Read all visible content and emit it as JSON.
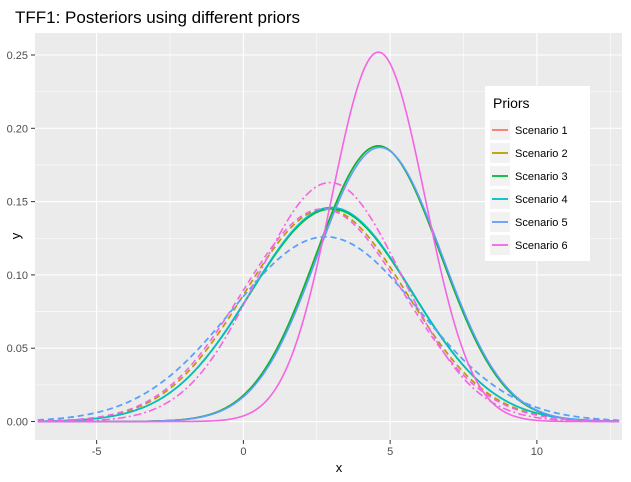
{
  "chart_data": {
    "type": "line",
    "title": "TFF1: Posteriors using different priors",
    "xlabel": "x",
    "ylabel": "y",
    "xlim": [
      -7.1,
      12.9
    ],
    "ylim": [
      -0.0126,
      0.265
    ],
    "x_ticks": [
      -5,
      0,
      5,
      10
    ],
    "y_ticks": [
      0.0,
      0.05,
      0.1,
      0.15,
      0.2,
      0.25
    ],
    "x_tick_labels": [
      "-5",
      "0",
      "5",
      "10"
    ],
    "y_tick_labels": [
      "0.00",
      "0.05",
      "0.10",
      "0.15",
      "0.20",
      "0.25"
    ],
    "grid": true,
    "legend": {
      "title": "Priors",
      "position": "right",
      "entries": [
        "Scenario 1",
        "Scenario 2",
        "Scenario 3",
        "Scenario 4",
        "Scenario 5",
        "Scenario 6"
      ]
    },
    "x_range": [
      -7,
      12.8
    ],
    "series": [
      {
        "name": "Scenario 1",
        "color": "#F8766D",
        "curves": [
          {
            "style": "dashed",
            "mean": 2.8,
            "sd": 2.75,
            "peak": 0.145
          },
          {
            "style": "solid",
            "mean": 4.6,
            "sd": 2.12,
            "peak": 0.188
          }
        ]
      },
      {
        "name": "Scenario 2",
        "color": "#B79F00",
        "curves": [
          {
            "style": "dashed",
            "mean": 2.8,
            "sd": 2.75,
            "peak": 0.145
          },
          {
            "style": "solid",
            "mean": 4.6,
            "sd": 2.12,
            "peak": 0.188
          }
        ]
      },
      {
        "name": "Scenario 3",
        "color": "#00BA38",
        "curves": [
          {
            "style": "solid",
            "mean": 3.0,
            "sd": 2.75,
            "peak": 0.145
          },
          {
            "style": "solid",
            "mean": 4.6,
            "sd": 2.12,
            "peak": 0.188
          }
        ]
      },
      {
        "name": "Scenario 4",
        "color": "#00BFC4",
        "curves": [
          {
            "style": "solid",
            "mean": 3.0,
            "sd": 2.75,
            "peak": 0.146
          },
          {
            "style": "dashed",
            "mean": 2.8,
            "sd": 3.17,
            "peak": 0.126
          }
        ]
      },
      {
        "name": "Scenario 5",
        "color": "#619CFF",
        "curves": [
          {
            "style": "dashed",
            "mean": 2.8,
            "sd": 3.17,
            "peak": 0.126
          },
          {
            "style": "solid",
            "mean": 4.65,
            "sd": 2.12,
            "peak": 0.187
          }
        ]
      },
      {
        "name": "Scenario 6",
        "color": "#F564E3",
        "curves": [
          {
            "style": "dashdot",
            "mean": 2.95,
            "sd": 2.46,
            "peak": 0.163
          },
          {
            "style": "dashed",
            "mean": 2.7,
            "sd": 2.75,
            "peak": 0.145
          },
          {
            "style": "solid",
            "mean": 4.6,
            "sd": 1.59,
            "peak": 0.252
          }
        ]
      }
    ]
  }
}
